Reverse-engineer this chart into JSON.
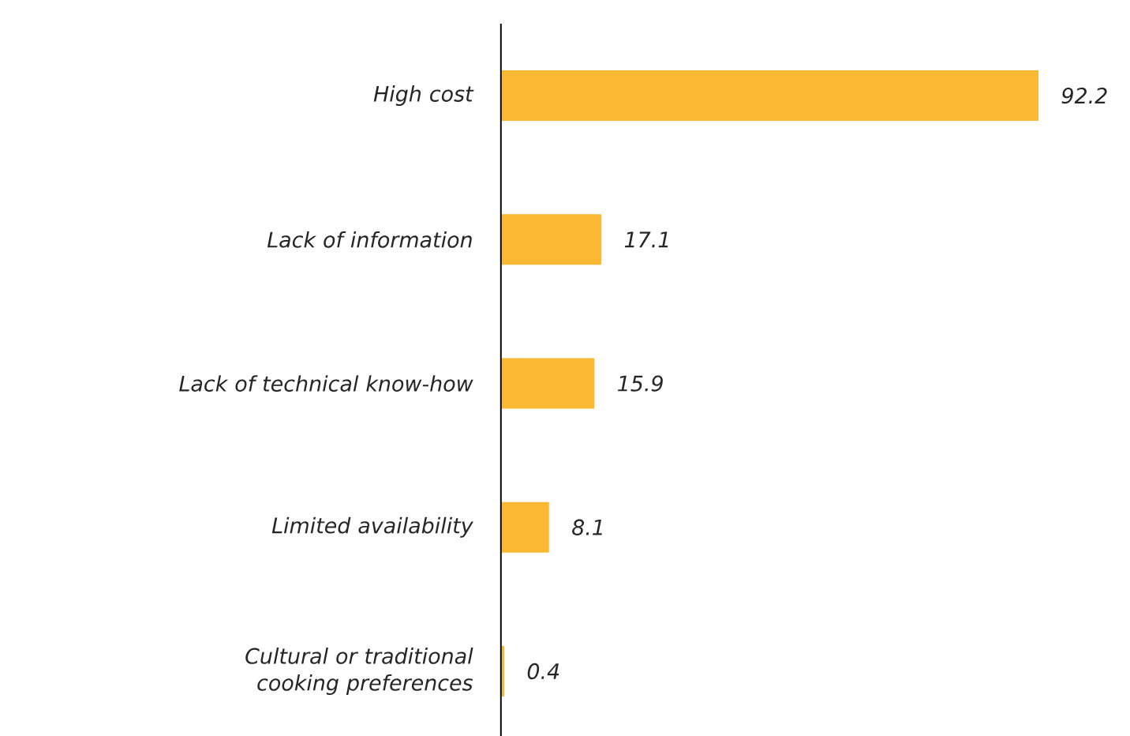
{
  "chart_data": {
    "type": "bar",
    "orientation": "horizontal",
    "categories": [
      "High cost",
      "Lack of information",
      "Lack of technical know-how",
      "Limited availability",
      "Cultural or traditional cooking preferences"
    ],
    "values": [
      92.2,
      17.1,
      15.9,
      8.1,
      0.4
    ],
    "color": "#fbb833",
    "data_labels": true,
    "tick_labels": "y"
  }
}
